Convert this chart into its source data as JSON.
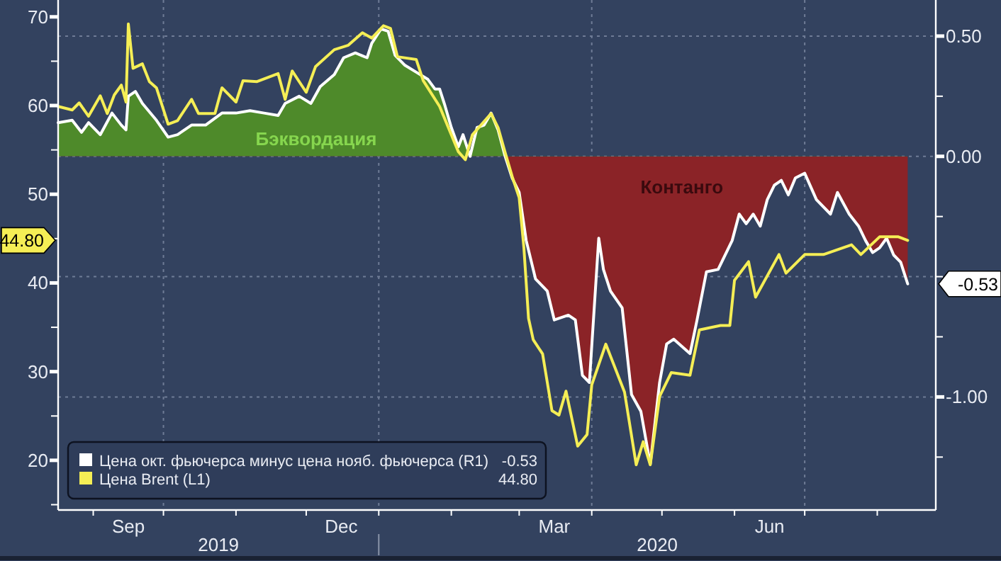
{
  "chart_data": {
    "type": "line",
    "xlim": [
      "2019-08-17",
      "2020-08-26"
    ],
    "xticks": [
      {
        "value": "2019-09-01",
        "label": null
      },
      {
        "value": "2019-09-16",
        "label": "Sep"
      },
      {
        "value": "2019-10-01",
        "label": null
      },
      {
        "value": "2019-11-01",
        "label": null
      },
      {
        "value": "2019-12-01",
        "label": null
      },
      {
        "value": "2019-12-16",
        "label": "Dec"
      },
      {
        "value": "2020-01-01",
        "label": null
      },
      {
        "value": "2020-02-01",
        "label": null
      },
      {
        "value": "2020-03-01",
        "label": null
      },
      {
        "value": "2020-03-16",
        "label": "Mar"
      },
      {
        "value": "2020-04-01",
        "label": null
      },
      {
        "value": "2020-05-01",
        "label": null
      },
      {
        "value": "2020-06-01",
        "label": null
      },
      {
        "value": "2020-06-16",
        "label": "Jun"
      },
      {
        "value": "2020-07-01",
        "label": null
      },
      {
        "value": "2020-08-01",
        "label": null
      }
    ],
    "ylim": [
      14.4,
      71.9
    ],
    "yticks": [
      {
        "value": 15,
        "label": null
      },
      20,
      {
        "value": 25,
        "label": null
      },
      30,
      {
        "value": 35,
        "label": null
      },
      40,
      {
        "value": 45,
        "label": null
      },
      50,
      {
        "value": 55,
        "label": null
      },
      60,
      {
        "value": 65,
        "label": null
      },
      70
    ],
    "y2lim": [
      -1.47,
      0.65
    ],
    "y2ticks": [
      {
        "value": 0.5,
        "label": "0.50"
      },
      {
        "value": 0.25,
        "label": null
      },
      {
        "value": 0,
        "label": "0.00"
      },
      {
        "value": -0.25,
        "label": null
      },
      {
        "value": -0.5,
        "label": null
      },
      {
        "value": -0.75,
        "label": null
      },
      {
        "value": -1,
        "label": "-1.00"
      },
      {
        "value": -1.25,
        "label": null
      }
    ],
    "grid": true,
    "legend": "bottom left",
    "annotations": [
      "Бэквордация",
      "Контанго",
      "2019",
      "2020",
      "-0.53",
      "44.80"
    ],
    "series": [
      {
        "name": "Цена окт. фьючерса минус цена нояб. фьючерса (R1)",
        "type": "area",
        "axis": "y2",
        "color": "#ffffff",
        "x": [
          "2019-08-17",
          "2019-08-23",
          "2019-08-27",
          "2019-08-30",
          "2019-09-04",
          "2019-09-09",
          "2019-09-13",
          "2019-09-15",
          "2019-09-16",
          "2019-09-19",
          "2019-09-22",
          "2019-09-28",
          "2019-10-03",
          "2019-10-07",
          "2019-10-13",
          "2019-10-19",
          "2019-10-26",
          "2019-11-01",
          "2019-11-07",
          "2019-11-13",
          "2019-11-19",
          "2019-11-22",
          "2019-11-28",
          "2019-12-03",
          "2019-12-07",
          "2019-12-13",
          "2019-12-17",
          "2019-12-22",
          "2019-12-27",
          "2019-12-29",
          "2020-01-02",
          "2020-01-05",
          "2020-01-08",
          "2020-01-12",
          "2020-01-17",
          "2020-01-22",
          "2020-01-25",
          "2020-01-27",
          "2020-01-29",
          "2020-02-01",
          "2020-02-04",
          "2020-02-06",
          "2020-02-09",
          "2020-02-12",
          "2020-02-15",
          "2020-02-18",
          "2020-02-21",
          "2020-02-24",
          "2020-02-27",
          "2020-03-01",
          "2020-03-04",
          "2020-03-08",
          "2020-03-13",
          "2020-03-16",
          "2020-03-22",
          "2020-03-25",
          "2020-03-28",
          "2020-03-31",
          "2020-04-04",
          "2020-04-06",
          "2020-04-09",
          "2020-04-14",
          "2020-04-18",
          "2020-04-22",
          "2020-04-26",
          "2020-04-30",
          "2020-05-03",
          "2020-05-06",
          "2020-05-13",
          "2020-05-16",
          "2020-05-20",
          "2020-05-25",
          "2020-05-31",
          "2020-06-03",
          "2020-06-06",
          "2020-06-09",
          "2020-06-12",
          "2020-06-15",
          "2020-06-18",
          "2020-06-21",
          "2020-06-24",
          "2020-06-27",
          "2020-07-01",
          "2020-07-06",
          "2020-07-12",
          "2020-07-15",
          "2020-07-20",
          "2020-07-24",
          "2020-07-27",
          "2020-07-30",
          "2020-08-02",
          "2020-08-05",
          "2020-08-08",
          "2020-08-11",
          "2020-08-14"
        ],
        "values": [
          0.14,
          0.15,
          0.1,
          0.14,
          0.09,
          0.18,
          0.13,
          0.11,
          0.25,
          0.27,
          0.22,
          0.15,
          0.08,
          0.09,
          0.13,
          0.13,
          0.18,
          0.18,
          0.19,
          0.18,
          0.17,
          0.22,
          0.25,
          0.22,
          0.29,
          0.34,
          0.41,
          0.43,
          0.41,
          0.47,
          0.53,
          0.52,
          0.42,
          0.38,
          0.35,
          0.32,
          0.28,
          0.28,
          0.22,
          0.12,
          0.04,
          0.09,
          0.0,
          0.12,
          0.13,
          0.18,
          0.11,
          0.0,
          -0.09,
          -0.15,
          -0.35,
          -0.51,
          -0.56,
          -0.68,
          -0.66,
          -0.68,
          -0.91,
          -0.94,
          -0.34,
          -0.47,
          -0.56,
          -0.63,
          -0.99,
          -1.06,
          -1.28,
          -0.94,
          -0.78,
          -0.76,
          -0.82,
          -0.68,
          -0.48,
          -0.47,
          -0.35,
          -0.24,
          -0.28,
          -0.24,
          -0.29,
          -0.18,
          -0.12,
          -0.1,
          -0.16,
          -0.09,
          -0.07,
          -0.18,
          -0.24,
          -0.15,
          -0.24,
          -0.29,
          -0.35,
          -0.4,
          -0.38,
          -0.34,
          -0.41,
          -0.44,
          -0.53
        ]
      },
      {
        "name": "Цена Brent (L1)",
        "color": "#f5ee55",
        "x": [
          "2019-08-17",
          "2019-08-23",
          "2019-08-26",
          "2019-08-30",
          "2019-09-04",
          "2019-09-07",
          "2019-09-10",
          "2019-09-13",
          "2019-09-15",
          "2019-09-16",
          "2019-09-18",
          "2019-09-22",
          "2019-09-25",
          "2019-09-28",
          "2019-10-03",
          "2019-10-07",
          "2019-10-13",
          "2019-10-16",
          "2019-10-23",
          "2019-10-26",
          "2019-11-01",
          "2019-11-04",
          "2019-11-10",
          "2019-11-19",
          "2019-11-22",
          "2019-11-25",
          "2019-12-01",
          "2019-12-05",
          "2019-12-13",
          "2019-12-19",
          "2019-12-25",
          "2019-12-29",
          "2020-01-03",
          "2020-01-06",
          "2020-01-09",
          "2020-01-17",
          "2020-01-20",
          "2020-01-27",
          "2020-02-01",
          "2020-02-04",
          "2020-02-07",
          "2020-02-10",
          "2020-02-18",
          "2020-02-21",
          "2020-02-24",
          "2020-02-27",
          "2020-03-01",
          "2020-03-03",
          "2020-03-05",
          "2020-03-07",
          "2020-03-11",
          "2020-03-15",
          "2020-03-18",
          "2020-03-21",
          "2020-03-26",
          "2020-03-30",
          "2020-04-01",
          "2020-04-07",
          "2020-04-15",
          "2020-04-20",
          "2020-04-23",
          "2020-04-26",
          "2020-04-30",
          "2020-05-05",
          "2020-05-13",
          "2020-05-17",
          "2020-05-26",
          "2020-05-30",
          "2020-06-01",
          "2020-06-07",
          "2020-06-10",
          "2020-06-20",
          "2020-06-23",
          "2020-07-01",
          "2020-07-09",
          "2020-07-21",
          "2020-07-25",
          "2020-08-02",
          "2020-08-10",
          "2020-08-14"
        ],
        "values": [
          59.9,
          59.5,
          60.3,
          58.8,
          61.1,
          59.1,
          61.2,
          62.3,
          60.4,
          69.2,
          64.2,
          64.7,
          62.7,
          62.0,
          57.9,
          58.3,
          60.7,
          59.1,
          59.1,
          62.0,
          60.4,
          62.8,
          62.7,
          63.6,
          60.7,
          63.9,
          61.5,
          64.4,
          66.3,
          66.8,
          68.2,
          67.6,
          69.0,
          68.7,
          65.5,
          65.2,
          62.8,
          59.9,
          56.7,
          54.8,
          53.9,
          56.7,
          59.1,
          57.5,
          54.7,
          52.0,
          49.6,
          44.0,
          36.0,
          33.6,
          32.0,
          25.6,
          25.1,
          27.8,
          21.6,
          22.9,
          28.5,
          33.1,
          27.7,
          19.5,
          22.1,
          19.5,
          27.2,
          29.9,
          29.6,
          34.7,
          35.2,
          35.2,
          40.3,
          42.4,
          38.4,
          43.2,
          41.1,
          43.2,
          43.2,
          44.3,
          43.2,
          45.2,
          45.2,
          44.8
        ]
      }
    ]
  }
}
